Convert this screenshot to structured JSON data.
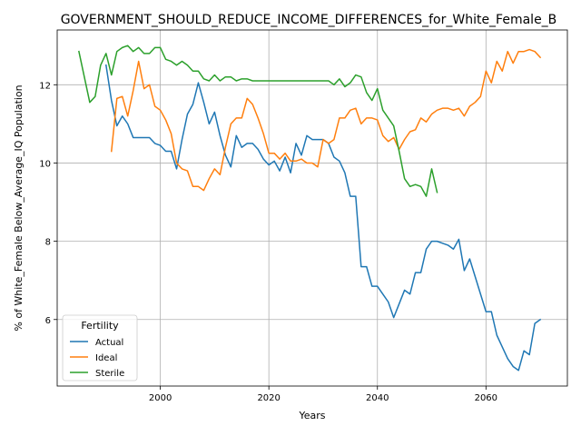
{
  "chart_data": {
    "type": "line",
    "title": "GOVERNMENT_SHOULD_REDUCE_INCOME_DIFFERENCES_for_White_Female_B",
    "xlabel": "Years",
    "ylabel": "% of White_Female Below_Average_IQ Population",
    "xlim": [
      1981,
      2075
    ],
    "ylim": [
      4.3,
      13.4
    ],
    "xticks": [
      2000,
      2020,
      2040,
      2060
    ],
    "yticks": [
      6,
      8,
      10,
      12
    ],
    "grid": true,
    "legend": {
      "title": "Fertility",
      "placement": "lower-left"
    },
    "series": [
      {
        "name": "Actual",
        "color": "#1f77b4",
        "x": [
          1990,
          1991,
          1992,
          1993,
          1994,
          1995,
          1996,
          1997,
          1998,
          1999,
          2000,
          2001,
          2002,
          2003,
          2004,
          2005,
          2006,
          2007,
          2008,
          2009,
          2010,
          2011,
          2012,
          2013,
          2014,
          2015,
          2016,
          2017,
          2018,
          2019,
          2020,
          2021,
          2022,
          2023,
          2024,
          2025,
          2026,
          2027,
          2028,
          2029,
          2030,
          2031,
          2032,
          2033,
          2034,
          2035,
          2036,
          2037,
          2038,
          2039,
          2040,
          2041,
          2042,
          2043,
          2044,
          2045,
          2046,
          2047,
          2048,
          2049,
          2050,
          2051,
          2052,
          2053,
          2054,
          2055,
          2056,
          2057,
          2058,
          2059,
          2060,
          2061,
          2062,
          2063,
          2064,
          2065,
          2066,
          2067,
          2068,
          2069,
          2070
        ],
        "y": [
          12.5,
          11.6,
          10.95,
          11.2,
          11.0,
          10.65,
          10.65,
          10.65,
          10.65,
          10.5,
          10.45,
          10.3,
          10.3,
          9.85,
          10.6,
          11.25,
          11.5,
          12.05,
          11.55,
          11.0,
          11.3,
          10.7,
          10.2,
          9.9,
          10.7,
          10.4,
          10.5,
          10.5,
          10.35,
          10.1,
          9.95,
          10.05,
          9.8,
          10.15,
          9.75,
          10.5,
          10.2,
          10.7,
          10.6,
          10.6,
          10.6,
          10.5,
          10.15,
          10.05,
          9.75,
          9.15,
          9.15,
          7.35,
          7.35,
          6.85,
          6.85,
          6.65,
          6.45,
          6.05,
          6.4,
          6.75,
          6.65,
          7.2,
          7.2,
          7.8,
          8.0,
          8.0,
          7.95,
          7.9,
          7.8,
          8.05,
          7.25,
          7.55,
          7.1,
          6.65,
          6.2,
          6.2,
          5.6,
          5.3,
          5.0,
          4.8,
          4.7,
          5.2,
          5.1,
          5.9,
          6.0
        ]
      },
      {
        "name": "Ideal",
        "color": "#ff7f0e",
        "x": [
          1991,
          1992,
          1993,
          1994,
          1995,
          1996,
          1997,
          1998,
          1999,
          2000,
          2001,
          2002,
          2003,
          2004,
          2005,
          2006,
          2007,
          2008,
          2009,
          2010,
          2011,
          2012,
          2013,
          2014,
          2015,
          2016,
          2017,
          2018,
          2019,
          2020,
          2021,
          2022,
          2023,
          2024,
          2025,
          2026,
          2027,
          2028,
          2029,
          2030,
          2031,
          2032,
          2033,
          2034,
          2035,
          2036,
          2037,
          2038,
          2039,
          2040,
          2041,
          2042,
          2043,
          2044,
          2045,
          2046,
          2047,
          2048,
          2049,
          2050,
          2051,
          2052,
          2053,
          2054,
          2055,
          2056,
          2057,
          2058,
          2059,
          2060,
          2061,
          2062,
          2063,
          2064,
          2065,
          2066,
          2067,
          2068,
          2069,
          2070
        ],
        "y": [
          10.3,
          11.65,
          11.7,
          11.2,
          11.85,
          12.6,
          11.9,
          12.0,
          11.45,
          11.35,
          11.1,
          10.75,
          10.0,
          9.85,
          9.8,
          9.4,
          9.4,
          9.3,
          9.6,
          9.85,
          9.7,
          10.4,
          11.0,
          11.15,
          11.15,
          11.65,
          11.5,
          11.15,
          10.75,
          10.25,
          10.25,
          10.1,
          10.25,
          10.05,
          10.05,
          10.1,
          10.0,
          10.0,
          9.9,
          10.6,
          10.5,
          10.6,
          11.15,
          11.15,
          11.35,
          11.4,
          11.0,
          11.15,
          11.15,
          11.1,
          10.7,
          10.55,
          10.65,
          10.35,
          10.6,
          10.8,
          10.85,
          11.15,
          11.05,
          11.25,
          11.35,
          11.4,
          11.4,
          11.35,
          11.4,
          11.2,
          11.45,
          11.55,
          11.7,
          12.35,
          12.05,
          12.6,
          12.35,
          12.85,
          12.55,
          12.85,
          12.85,
          12.9,
          12.85,
          12.7
        ]
      },
      {
        "name": "Sterile",
        "color": "#2ca02c",
        "x": [
          1985,
          1986,
          1987,
          1988,
          1989,
          1990,
          1991,
          1992,
          1993,
          1994,
          1995,
          1996,
          1997,
          1998,
          1999,
          2000,
          2001,
          2002,
          2003,
          2004,
          2005,
          2006,
          2007,
          2008,
          2009,
          2010,
          2011,
          2012,
          2013,
          2014,
          2015,
          2016,
          2017,
          2018,
          2019,
          2020,
          2021,
          2022,
          2023,
          2024,
          2025,
          2026,
          2027,
          2028,
          2029,
          2030,
          2031,
          2032,
          2033,
          2034,
          2035,
          2036,
          2037,
          2038,
          2039,
          2040,
          2041,
          2042,
          2043,
          2044,
          2045,
          2046,
          2047,
          2048,
          2049,
          2050,
          2051
        ],
        "y": [
          12.85,
          12.2,
          11.55,
          11.7,
          12.5,
          12.8,
          12.25,
          12.85,
          12.95,
          13.0,
          12.85,
          12.95,
          12.8,
          12.8,
          12.95,
          12.95,
          12.65,
          12.6,
          12.5,
          12.6,
          12.5,
          12.35,
          12.35,
          12.15,
          12.1,
          12.25,
          12.1,
          12.2,
          12.2,
          12.1,
          12.15,
          12.15,
          12.1,
          12.1,
          12.1,
          12.1,
          12.1,
          12.1,
          12.1,
          12.1,
          12.1,
          12.1,
          12.1,
          12.1,
          12.1,
          12.1,
          12.1,
          12.0,
          12.15,
          11.95,
          12.05,
          12.25,
          12.2,
          11.8,
          11.6,
          11.9,
          11.35,
          11.15,
          10.95,
          10.3,
          9.6,
          9.4,
          9.45,
          9.4,
          9.15,
          9.85,
          9.25
        ]
      }
    ]
  }
}
